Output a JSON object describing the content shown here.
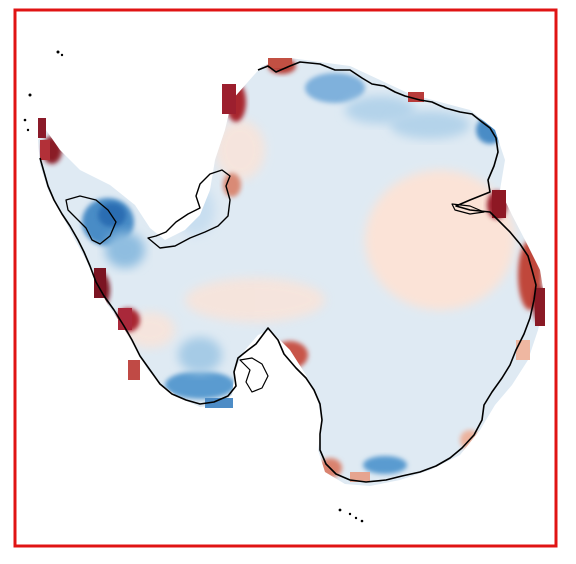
{
  "map": {
    "projection": "south-polar-stereographic",
    "region": "antarctica",
    "frame_color": "#e01414",
    "coastline_color": "#000000",
    "background_color": "#ffffff",
    "colormap": {
      "type": "diverging",
      "name": "red-blue",
      "colors": [
        "#67001f",
        "#b2182b",
        "#d6604d",
        "#f4a582",
        "#fddbc7",
        "#f7f7f7",
        "#d1e5f0",
        "#92c5de",
        "#4393c3",
        "#2166ac",
        "#053061"
      ]
    },
    "legend": null,
    "title": ""
  }
}
